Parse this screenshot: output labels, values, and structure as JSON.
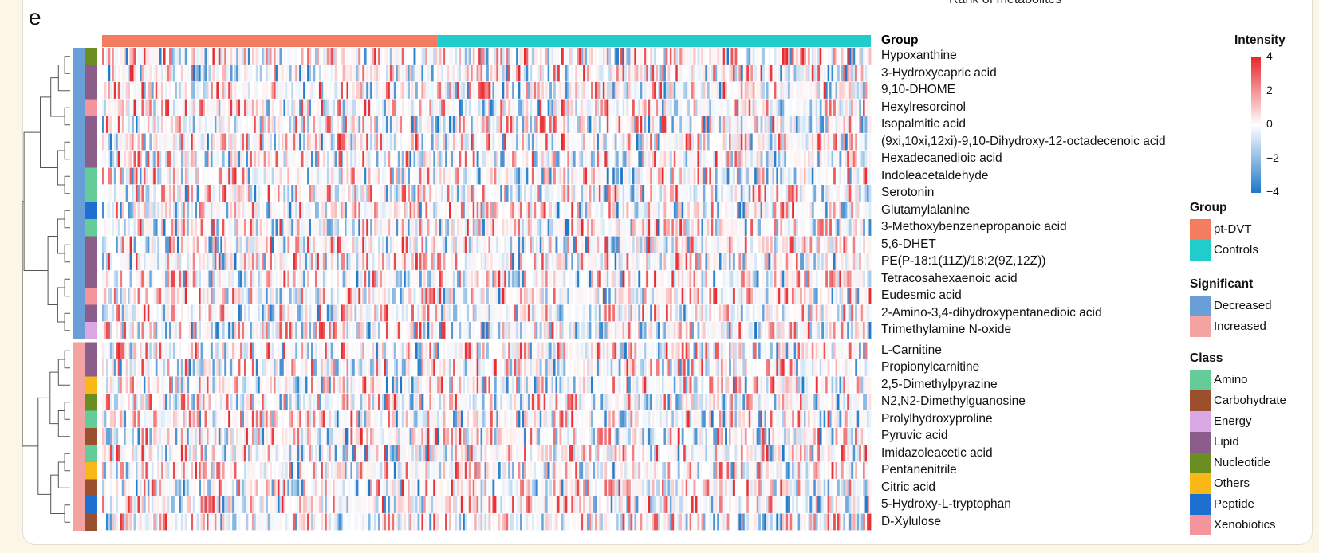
{
  "panel": {
    "letter": "e",
    "top_cut_text": "Rank of metabolites"
  },
  "chart_data": {
    "type": "heatmap",
    "title": "",
    "n_samples": 390,
    "columns_group": {
      "pt-DVT": 170,
      "Controls": 220
    },
    "value_range": [
      -4,
      4
    ],
    "rows": [
      {
        "name": "Hypoxanthine",
        "significant": "Decreased",
        "class": "Nucleotide"
      },
      {
        "name": "3-Hydroxycapric acid",
        "significant": "Decreased",
        "class": "Lipid"
      },
      {
        "name": "9,10-DHOME",
        "significant": "Decreased",
        "class": "Lipid"
      },
      {
        "name": "Hexylresorcinol",
        "significant": "Decreased",
        "class": "Xenobiotics"
      },
      {
        "name": "Isopalmitic acid",
        "significant": "Decreased",
        "class": "Lipid"
      },
      {
        "name": "(9xi,10xi,12xi)-9,10-Dihydroxy-12-octadecenoic acid",
        "significant": "Decreased",
        "class": "Lipid"
      },
      {
        "name": "Hexadecanedioic acid",
        "significant": "Decreased",
        "class": "Lipid"
      },
      {
        "name": "Indoleacetaldehyde",
        "significant": "Decreased",
        "class": "Amino"
      },
      {
        "name": "Serotonin",
        "significant": "Decreased",
        "class": "Amino"
      },
      {
        "name": "Glutamylalanine",
        "significant": "Decreased",
        "class": "Peptide"
      },
      {
        "name": "3-Methoxybenzenepropanoic acid",
        "significant": "Decreased",
        "class": "Amino"
      },
      {
        "name": "5,6-DHET",
        "significant": "Decreased",
        "class": "Lipid"
      },
      {
        "name": "PE(P-18:1(11Z)/18:2(9Z,12Z))",
        "significant": "Decreased",
        "class": "Lipid"
      },
      {
        "name": "Tetracosahexaenoic acid",
        "significant": "Decreased",
        "class": "Lipid"
      },
      {
        "name": "Eudesmic acid",
        "significant": "Decreased",
        "class": "Xenobiotics"
      },
      {
        "name": "2-Amino-3,4-dihydroxypentanedioic acid",
        "significant": "Decreased",
        "class": "Lipid"
      },
      {
        "name": "Trimethylamine N-oxide",
        "significant": "Decreased",
        "class": "Energy"
      },
      {
        "name": "L-Carnitine",
        "significant": "Increased",
        "class": "Lipid"
      },
      {
        "name": "Propionylcarnitine",
        "significant": "Increased",
        "class": "Lipid"
      },
      {
        "name": "2,5-Dimethylpyrazine",
        "significant": "Increased",
        "class": "Others"
      },
      {
        "name": "N2,N2-Dimethylguanosine",
        "significant": "Increased",
        "class": "Nucleotide"
      },
      {
        "name": "Prolylhydroxyproline",
        "significant": "Increased",
        "class": "Amino"
      },
      {
        "name": "Pyruvic acid",
        "significant": "Increased",
        "class": "Carbohydrate"
      },
      {
        "name": "Imidazoleacetic acid",
        "significant": "Increased",
        "class": "Amino"
      },
      {
        "name": "Pentanenitrile",
        "significant": "Increased",
        "class": "Others"
      },
      {
        "name": "Citric acid",
        "significant": "Increased",
        "class": "Carbohydrate"
      },
      {
        "name": "5-Hydroxy-L-tryptophan",
        "significant": "Increased",
        "class": "Peptide"
      },
      {
        "name": "D-Xylulose",
        "significant": "Increased",
        "class": "Carbohydrate"
      }
    ],
    "legend": {
      "intensity": {
        "title": "Intensity",
        "ticks": [
          "4",
          "2",
          "0",
          "−2",
          "−4"
        ]
      },
      "group": {
        "title": "Group",
        "items": [
          {
            "label": "pt-DVT",
            "color": "#f47c5f"
          },
          {
            "label": "Controls",
            "color": "#20cccc"
          }
        ]
      },
      "significant": {
        "title": "Significant",
        "items": [
          {
            "label": "Decreased",
            "color": "#6a9ed6"
          },
          {
            "label": "Increased",
            "color": "#f4a3a3"
          }
        ]
      },
      "class": {
        "title": "Class",
        "items": [
          {
            "label": "Amino",
            "color": "#64cc98"
          },
          {
            "label": "Carbohydrate",
            "color": "#9b4f2c"
          },
          {
            "label": "Energy",
            "color": "#dba8e6"
          },
          {
            "label": "Lipid",
            "color": "#8a5d8a"
          },
          {
            "label": "Nucleotide",
            "color": "#6b8e23"
          },
          {
            "label": "Others",
            "color": "#f8b818"
          },
          {
            "label": "Peptide",
            "color": "#1e70d0"
          },
          {
            "label": "Xenobiotics",
            "color": "#f4949c"
          }
        ]
      }
    },
    "group_row_label": "Group",
    "colors": {
      "high": "#e8282d",
      "mid": "#ffffff",
      "low": "#1e78c8"
    }
  }
}
